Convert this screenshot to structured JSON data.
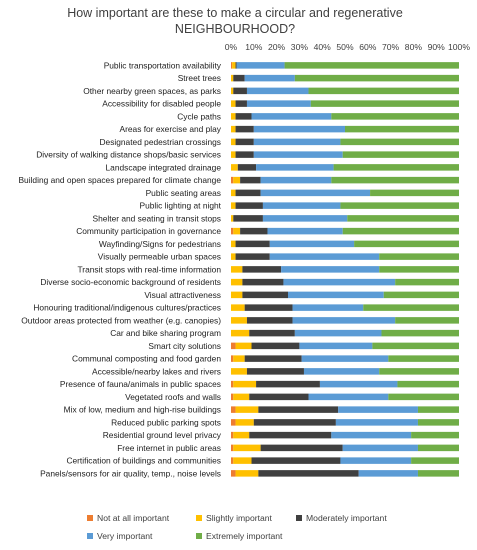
{
  "chart_data": {
    "type": "bar",
    "stacked": true,
    "orientation": "horizontal",
    "title_lines": [
      "How important are these to make a circular and regenerative",
      "NEIGHBOURHOOD?"
    ],
    "xlabel": "",
    "ylabel": "",
    "xlim": [
      0,
      100
    ],
    "x_ticks": [
      "0%",
      "10%",
      "20%",
      "30%",
      "40%",
      "50%",
      "60%",
      "70%",
      "80%",
      "90%",
      "100%"
    ],
    "grid": false,
    "legend_position": "bottom",
    "categories": [
      "Public transportation availability",
      "Street trees",
      "Other nearby green spaces, as parks",
      "Accessibility for disabled people",
      "Cycle paths",
      "Areas for exercise and play",
      "Designated pedestrian crossings",
      "Diversity of walking distance shops/basic services",
      "Landscape integrated drainage",
      "Building and open spaces prepared for climate change",
      "Public seating areas",
      "Public lighting at night",
      "Shelter and seating in transit stops",
      "Community participation in governance",
      "Wayfinding/Signs for pedestrians",
      "Visually permeable urban spaces",
      "Transit stops with real-time information",
      "Diverse socio-economic background of residents",
      "Visual attractiveness",
      "Honouring traditional/indigenous cultures/practices",
      "Outdoor areas protected from weather (e.g. canopies)",
      "Car and bike sharing program",
      "Smart city solutions",
      "Communal composting and food garden",
      "Accessible/nearby lakes and rivers",
      "Presence of fauna/animals in public spaces",
      "Vegetated roofs and walls",
      "Mix of low, medium and high-rise buildings",
      "Reduced public parking spots",
      "Residential ground level privacy",
      "Free internet in public areas",
      "Certification of buildings and communities",
      "Panels/sensors for air quality, temp., noise levels"
    ],
    "series": [
      {
        "name": "Not at all important",
        "color": "#ED7D31",
        "values": [
          0.5,
          0,
          0,
          0,
          0,
          0,
          0,
          0,
          0,
          1,
          0,
          0,
          0,
          1,
          0,
          0,
          0,
          0,
          0,
          0,
          0,
          0,
          2,
          1,
          0,
          1,
          1,
          2,
          2,
          1,
          1,
          1,
          2
        ]
      },
      {
        "name": "Slightly important",
        "color": "#FFC000",
        "values": [
          1.5,
          1,
          1,
          2,
          2,
          2,
          2,
          2,
          3,
          3,
          2,
          2,
          1,
          3,
          2,
          2,
          5,
          5,
          5,
          6,
          7,
          8,
          7,
          5,
          7,
          10,
          7,
          10,
          8,
          7,
          12,
          8,
          10
        ]
      },
      {
        "name": "Moderately important",
        "color": "#404040",
        "values": [
          0.5,
          5,
          6,
          5,
          7,
          8,
          8,
          8,
          8,
          9,
          11,
          12,
          13,
          12,
          15,
          15,
          17,
          18,
          20,
          21,
          20,
          20,
          21,
          25,
          25,
          28,
          26,
          35,
          36,
          36,
          36,
          39,
          44
        ]
      },
      {
        "name": "Very important",
        "color": "#5B9BD5",
        "values": [
          21,
          22,
          27,
          28,
          35,
          40,
          38,
          39,
          34,
          31,
          48,
          34,
          37,
          33,
          37,
          48,
          43,
          49,
          42,
          31,
          45,
          38,
          32,
          38,
          33,
          34,
          35,
          35,
          36,
          35,
          33,
          31,
          26
        ]
      },
      {
        "name": "Extremely important",
        "color": "#70AD47",
        "values": [
          76.5,
          72,
          66,
          65,
          56,
          50,
          52,
          51,
          55,
          56,
          39,
          52,
          49,
          51,
          46,
          35,
          35,
          28,
          33,
          42,
          28,
          34,
          38,
          31,
          35,
          27,
          31,
          18,
          18,
          21,
          18,
          21,
          18
        ]
      }
    ]
  }
}
